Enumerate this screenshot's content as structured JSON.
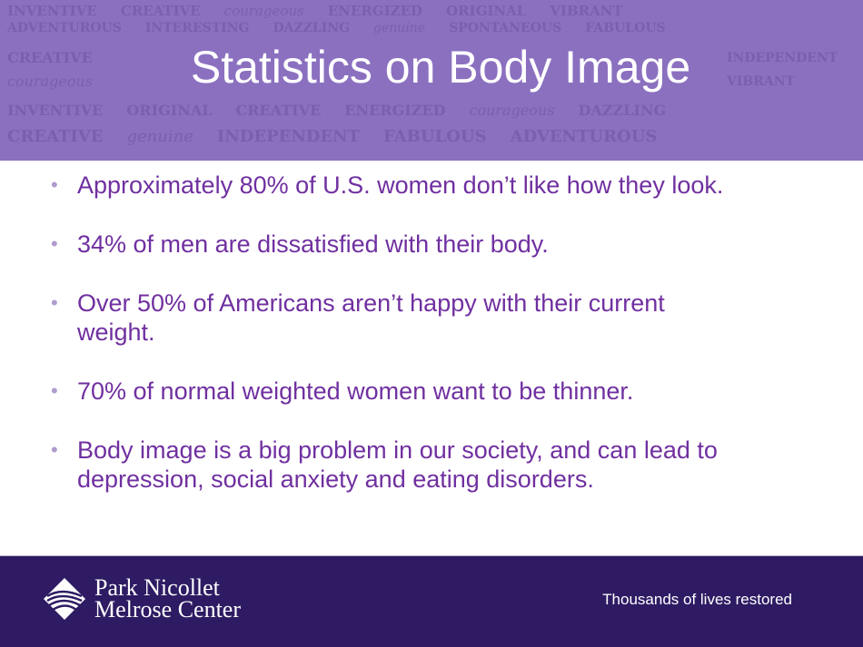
{
  "header": {
    "title": "Statistics on Body Image",
    "background_words": [
      "INVENTIVE",
      "ORIGINAL",
      "CREATIVE",
      "courageous",
      "ADVENTUROUS",
      "INTERESTING",
      "VIBRANT",
      "ENERGIZED",
      "DAZZLING",
      "genuine",
      "FABULOUS",
      "SPONTANEOUS",
      "INDEPENDENT"
    ],
    "background_color": "#8b70c0"
  },
  "bullets": [
    "Approximately 80% of U.S. women don’t like how they look.",
    "34% of men are dissatisfied with their body.",
    "Over 50% of Americans aren’t happy with their current weight.",
    "70% of normal weighted women want to be thinner.",
    "Body image is a big problem in our society, and can lead to depression, social anxiety and eating disorders."
  ],
  "bullet_symbol": "•",
  "footer": {
    "logo_line1": "Park Nicollet",
    "logo_line2": "Melrose Center",
    "tagline": "Thousands of lives restored",
    "background_color": "#2e1b63"
  },
  "text_color": "#7030a0"
}
